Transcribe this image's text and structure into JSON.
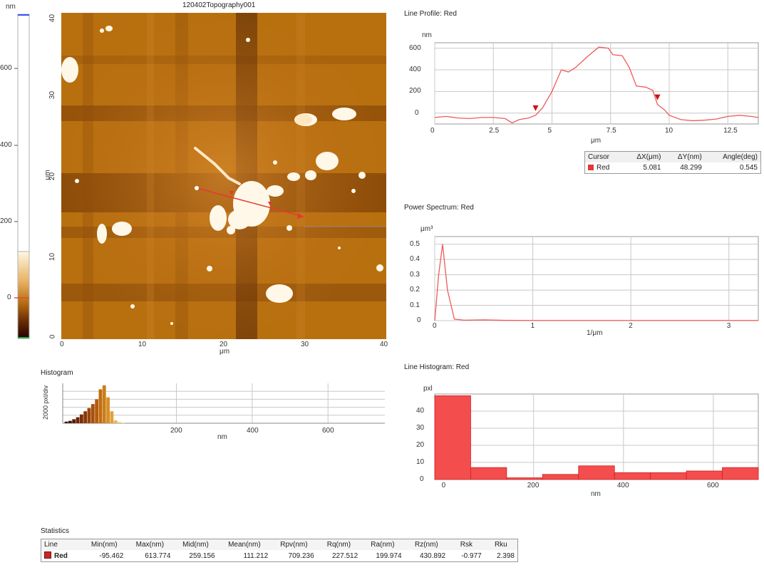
{
  "image": {
    "title": "120402Topography001",
    "axis_unit": "μm",
    "x_ticks": [
      "0",
      "10",
      "20",
      "30",
      "40"
    ],
    "y_ticks": [
      "0",
      "10",
      "20",
      "30",
      "40"
    ]
  },
  "colorbar": {
    "unit": "nm",
    "ticks": [
      "600",
      "400",
      "200",
      "0"
    ],
    "range_nm": [
      -95.462,
      613.774
    ]
  },
  "histogram": {
    "title": "Histogram",
    "ylabel": "2000 pxl/div",
    "xlabel": "nm",
    "x_ticks": [
      "200",
      "400",
      "600"
    ]
  },
  "line_profile": {
    "title": "Line Profile: Red",
    "yunit": "nm",
    "xlabel": "μm",
    "y_ticks": [
      "600",
      "400",
      "200",
      "0"
    ],
    "x_ticks": [
      "0",
      "2.5",
      "5",
      "7.5",
      "10",
      "12.5"
    ]
  },
  "cursor_table": {
    "headers": [
      "Cursor",
      "ΔX(μm)",
      "ΔY(nm)",
      "Angle(deg)"
    ],
    "row": {
      "name": "Red",
      "dx": "5.081",
      "dy": "48.299",
      "angle": "0.545"
    }
  },
  "power_spectrum": {
    "title": "Power Spectrum: Red",
    "yunit": "μm³",
    "xlabel": "1/μm",
    "y_ticks": [
      "0.5",
      "0.4",
      "0.3",
      "0.2",
      "0.1",
      "0"
    ],
    "x_ticks": [
      "0",
      "1",
      "2",
      "3"
    ]
  },
  "line_histogram": {
    "title": "Line Histogram: Red",
    "yunit": "pxl",
    "xlabel": "nm",
    "y_ticks": [
      "40",
      "30",
      "20",
      "10",
      "0"
    ],
    "x_ticks": [
      "0",
      "200",
      "400",
      "600"
    ]
  },
  "statistics": {
    "title": "Statistics",
    "headers": [
      "Line",
      "Min(nm)",
      "Max(nm)",
      "Mid(nm)",
      "Mean(nm)",
      "Rpv(nm)",
      "Rq(nm)",
      "Ra(nm)",
      "Rz(nm)",
      "Rsk",
      "Rku"
    ],
    "row": [
      "Red",
      "-95.462",
      "613.774",
      "259.156",
      "111.212",
      "709.236",
      "227.512",
      "199.974",
      "430.892",
      "-0.977",
      "2.398"
    ]
  },
  "chart_data": [
    {
      "type": "line",
      "title": "Line Profile: Red",
      "xlabel": "μm",
      "ylabel": "nm",
      "xlim": [
        0,
        13.8
      ],
      "ylim": [
        -100,
        650
      ],
      "series": [
        {
          "name": "Red",
          "color": "#f05a5a",
          "x": [
            0,
            0.5,
            1,
            1.5,
            2,
            2.5,
            3,
            3.3,
            3.6,
            4,
            4.3,
            4.6,
            5,
            5.4,
            5.7,
            6,
            6.5,
            7,
            7.4,
            7.6,
            8,
            8.3,
            8.6,
            9,
            9.3,
            9.5,
            9.8,
            10,
            10.5,
            11,
            11.5,
            12,
            12.5,
            13,
            13.5,
            13.8
          ],
          "y": [
            -40,
            -30,
            -45,
            -50,
            -40,
            -40,
            -50,
            -90,
            -60,
            -45,
            -20,
            50,
            200,
            400,
            380,
            420,
            520,
            610,
            600,
            540,
            530,
            420,
            250,
            240,
            210,
            80,
            30,
            -20,
            -60,
            -70,
            -65,
            -55,
            -30,
            -20,
            -30,
            -40
          ]
        }
      ],
      "markers_x": [
        4.3,
        9.5
      ]
    },
    {
      "type": "line",
      "title": "Power Spectrum: Red",
      "xlabel": "1/μm",
      "ylabel": "μm³",
      "xlim": [
        0,
        3.3
      ],
      "ylim": [
        0,
        0.55
      ],
      "series": [
        {
          "name": "Red",
          "color": "#f05a5a",
          "x": [
            0,
            0.04,
            0.08,
            0.13,
            0.2,
            0.3,
            0.5,
            0.7,
            1,
            2,
            3,
            3.3
          ],
          "y": [
            0,
            0.3,
            0.5,
            0.2,
            0.01,
            0.003,
            0.005,
            0.002,
            0.001,
            0.001,
            0.001,
            0.001
          ]
        }
      ]
    },
    {
      "type": "bar",
      "title": "Line Histogram: Red",
      "xlabel": "nm",
      "ylabel": "pxl",
      "xlim": [
        -20,
        700
      ],
      "ylim": [
        0,
        50
      ],
      "bin_edges": [
        -20,
        60,
        140,
        220,
        300,
        380,
        460,
        540,
        620,
        700
      ],
      "values": [
        49,
        7,
        1,
        3,
        8,
        4,
        4,
        5,
        7
      ]
    },
    {
      "type": "bar",
      "title": "Histogram",
      "xlabel": "nm",
      "ylabel": "2000 pxl/div",
      "xlim": [
        -100,
        750
      ],
      "ylim": [
        0,
        10000
      ],
      "bin_edges": [
        -95,
        -85,
        -75,
        -65,
        -55,
        -45,
        -35,
        -25,
        -15,
        -5,
        5,
        15,
        25,
        35,
        45,
        55,
        65
      ],
      "values": [
        400,
        600,
        1000,
        1500,
        2200,
        3000,
        3800,
        4800,
        6000,
        8500,
        9500,
        6500,
        3000,
        700,
        300,
        150
      ]
    }
  ]
}
